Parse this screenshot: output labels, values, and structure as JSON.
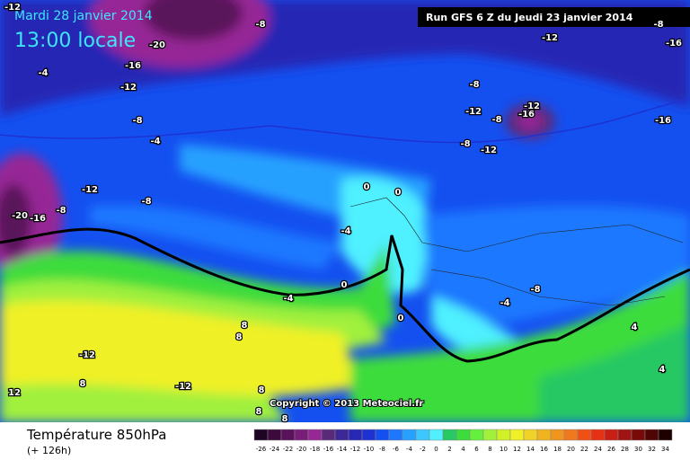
{
  "header": {
    "date": "Mardi 28 janvier 2014",
    "time": "13:00 locale",
    "run": "Run GFS 6 Z du Jeudi 23 janvier 2014"
  },
  "map": {
    "copyright": "Copyright © 2013 Meteociel.fr",
    "contour_labels": [
      "-12",
      "-8",
      "-20",
      "-12",
      "-16",
      "-4",
      "-12",
      "-8",
      "-12",
      "-8",
      "-12",
      "-16",
      "-16",
      "-8",
      "-4",
      "-8",
      "-12",
      "-12",
      "-8",
      "-8",
      "-20",
      "-16",
      "-4",
      "0",
      "0",
      "0",
      "-4",
      "0",
      "-8",
      "-4",
      "8",
      "8",
      "-12",
      "4",
      "12",
      "8",
      "-12",
      "8",
      "8",
      "8",
      "4",
      "-8",
      "-16"
    ]
  },
  "footer": {
    "title": "Température 850hPa",
    "lead": "(+ 126h)"
  },
  "colorbar": {
    "labels": [
      -26,
      -24,
      -22,
      -20,
      -18,
      -16,
      -14,
      -12,
      -10,
      -8,
      -6,
      -4,
      -2,
      0,
      2,
      4,
      6,
      8,
      10,
      12,
      14,
      16,
      18,
      20,
      22,
      24,
      26,
      28,
      30,
      32,
      34
    ],
    "colors": [
      "#1e0524",
      "#3c0a3c",
      "#5a125a",
      "#781e78",
      "#962896",
      "#5a2a7a",
      "#3c2896",
      "#2828b4",
      "#1e32d2",
      "#1450f0",
      "#1e78ff",
      "#28a0ff",
      "#3cc8ff",
      "#50f0ff",
      "#28c864",
      "#3cdc3c",
      "#64f03c",
      "#a0f03c",
      "#d2f028",
      "#f0f028",
      "#f0d228",
      "#f0b41e",
      "#f0961e",
      "#f0781e",
      "#f05014",
      "#e63214",
      "#c81e14",
      "#a01414",
      "#780a0a",
      "#500505",
      "#1e0000"
    ]
  }
}
